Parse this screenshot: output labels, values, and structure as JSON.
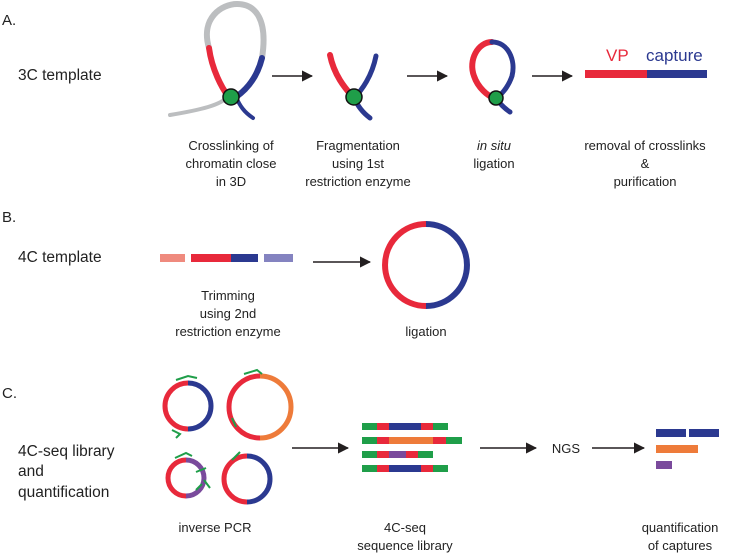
{
  "colors": {
    "red": "#e8293b",
    "blue": "#2b3990",
    "gray": "#bcbec0",
    "green_dot": "#1f9e49",
    "orange": "#ee7b3a",
    "purple": "#7a4a9c",
    "salmon": "#ef8a7e",
    "lavender": "#8483c0",
    "primer_green": "#1f9e49",
    "arrow": "#231f20"
  },
  "sectionA": {
    "letter": "A.",
    "title": "3C template",
    "steps": [
      {
        "lines": [
          "Crosslinking of",
          "chromatin close",
          "in 3D"
        ]
      },
      {
        "lines": [
          "Fragmentation",
          "using 1st",
          "restriction enzyme"
        ]
      },
      {
        "italic": "in situ",
        "lines": [
          "ligation"
        ]
      },
      {
        "lines": [
          "removal of  crosslinks",
          "&",
          "purification"
        ]
      }
    ],
    "vp_label": "VP",
    "capture_label": "capture"
  },
  "sectionB": {
    "letter": "B.",
    "title": "4C template",
    "trim_lines": [
      "Trimming",
      "using 2nd",
      "restriction enzyme"
    ],
    "ligation_label": "ligation"
  },
  "sectionC": {
    "letter": "C.",
    "title_lines": [
      "4C-seq library",
      "and",
      "quantification"
    ],
    "pcr_label": "inverse PCR",
    "library_lines": [
      "4C-seq",
      "sequence library"
    ],
    "ngs_label": "NGS",
    "quant_lines": [
      "quantification",
      "of captures"
    ]
  }
}
